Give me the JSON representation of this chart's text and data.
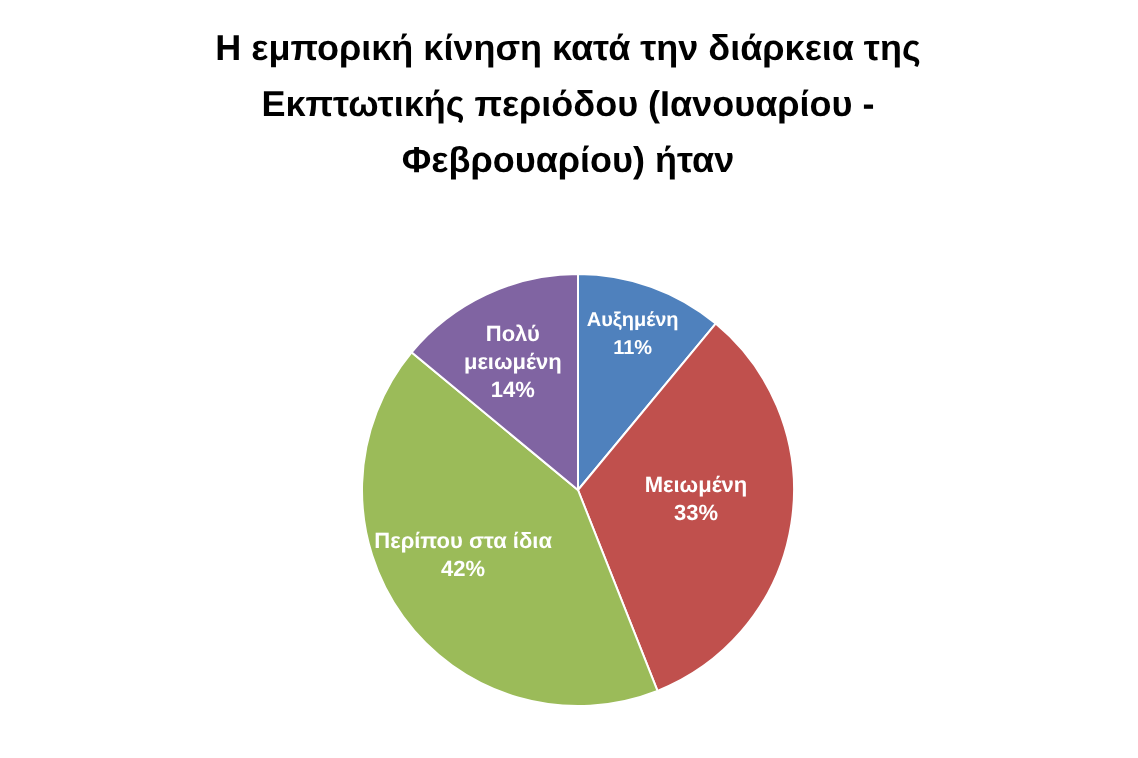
{
  "chart_data": {
    "type": "pie",
    "title": "Η εμπορική κίνηση κατά την διάρκεια της Εκπτωτικής περιόδου (Ιανουαρίου - Φεβρουαρίου) ήταν",
    "categories": [
      "Αυξημένη",
      "Μειωμένη",
      "Περίπου στα ίδια",
      "Πολύ μειωμένη"
    ],
    "values": [
      11,
      33,
      42,
      14
    ],
    "value_labels": [
      "11%",
      "33%",
      "42%",
      "14%"
    ],
    "colors": [
      "#4f81bd",
      "#c0504d",
      "#9bbb59",
      "#8064a2"
    ],
    "legend": false
  }
}
